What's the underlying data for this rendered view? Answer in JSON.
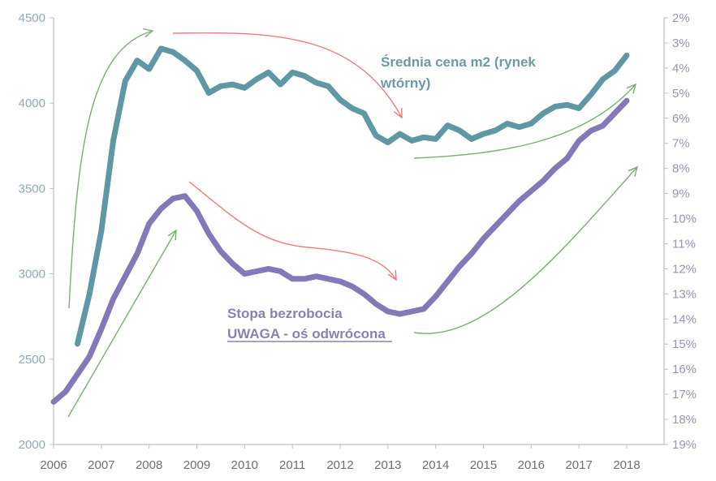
{
  "chart_data": {
    "type": "line",
    "title": "",
    "xlabel": "",
    "ylabel_left": "",
    "ylabel_right": "",
    "x_ticks": [
      "2006",
      "2007",
      "2008",
      "2009",
      "2010",
      "2011",
      "2012",
      "2013",
      "2014",
      "2015",
      "2016",
      "2017",
      "2018"
    ],
    "xlim": [
      2006,
      2018.8
    ],
    "y_left": {
      "ticks": [
        "2000",
        "2500",
        "3000",
        "3500",
        "4000",
        "4500"
      ],
      "ylim": [
        2000,
        4500
      ]
    },
    "y_right": {
      "ticks": [
        "2%",
        "3%",
        "4%",
        "5%",
        "6%",
        "7%",
        "8%",
        "9%",
        "10%",
        "11%",
        "12%",
        "13%",
        "14%",
        "15%",
        "16%",
        "17%",
        "18%",
        "19%"
      ],
      "ylim": [
        2,
        19
      ],
      "inverted": true
    },
    "grid": false,
    "series": [
      {
        "name": "Średnia cena m2 (rynek wtórny)",
        "axis": "left",
        "color": "#5f97a5",
        "x": [
          2006.5,
          2006.75,
          2007.0,
          2007.25,
          2007.5,
          2007.75,
          2008.0,
          2008.25,
          2008.5,
          2008.75,
          2009.0,
          2009.25,
          2009.5,
          2009.75,
          2010.0,
          2010.25,
          2010.5,
          2010.75,
          2011.0,
          2011.25,
          2011.5,
          2011.75,
          2012.0,
          2012.25,
          2012.5,
          2012.75,
          2013.0,
          2013.25,
          2013.5,
          2013.75,
          2014.0,
          2014.25,
          2014.5,
          2014.75,
          2015.0,
          2015.25,
          2015.5,
          2015.75,
          2016.0,
          2016.25,
          2016.5,
          2016.75,
          2017.0,
          2017.25,
          2017.5,
          2017.75,
          2018.0
        ],
        "values": [
          2590,
          2880,
          3250,
          3780,
          4130,
          4250,
          4200,
          4320,
          4300,
          4250,
          4190,
          4060,
          4100,
          4110,
          4090,
          4140,
          4180,
          4110,
          4180,
          4160,
          4120,
          4100,
          4020,
          3970,
          3940,
          3810,
          3770,
          3820,
          3780,
          3800,
          3790,
          3870,
          3840,
          3790,
          3820,
          3840,
          3880,
          3860,
          3880,
          3940,
          3980,
          3990,
          3970,
          4050,
          4140,
          4190,
          4280
        ]
      },
      {
        "name": "Stopa bezrobocia",
        "axis": "right",
        "color": "#8578b8",
        "x": [
          2006.0,
          2006.25,
          2006.5,
          2006.75,
          2007.0,
          2007.25,
          2007.5,
          2007.75,
          2008.0,
          2008.25,
          2008.5,
          2008.75,
          2009.0,
          2009.25,
          2009.5,
          2009.75,
          2010.0,
          2010.25,
          2010.5,
          2010.75,
          2011.0,
          2011.25,
          2011.5,
          2011.75,
          2012.0,
          2012.25,
          2012.5,
          2012.75,
          2013.0,
          2013.25,
          2013.5,
          2013.75,
          2014.0,
          2014.25,
          2014.5,
          2014.75,
          2015.0,
          2015.25,
          2015.5,
          2015.75,
          2016.0,
          2016.25,
          2016.5,
          2016.75,
          2017.0,
          2017.25,
          2017.5,
          2017.75,
          2018.0
        ],
        "values": [
          17.3,
          16.9,
          16.2,
          15.5,
          14.4,
          13.2,
          12.3,
          11.4,
          10.2,
          9.6,
          9.2,
          9.1,
          9.7,
          10.6,
          11.3,
          11.8,
          12.2,
          12.1,
          12.0,
          12.1,
          12.4,
          12.4,
          12.3,
          12.4,
          12.5,
          12.7,
          13.0,
          13.4,
          13.7,
          13.8,
          13.7,
          13.6,
          13.1,
          12.5,
          11.9,
          11.4,
          10.8,
          10.3,
          9.8,
          9.3,
          8.9,
          8.5,
          8.0,
          7.6,
          6.9,
          6.5,
          6.3,
          5.8,
          5.3
        ]
      }
    ],
    "annotations": [
      {
        "text": "Średnia cena m2 (rynek",
        "series": "price"
      },
      {
        "text": "wtórny)",
        "series": "price"
      },
      {
        "text": "Stopa bezrobocia",
        "series": "unemployment"
      },
      {
        "text": "UWAGA - oś odwrócona",
        "series": "unemployment",
        "underline": true
      }
    ],
    "trend_arrows": [
      {
        "name": "price-rise-2006-2008",
        "color": "#7aae72",
        "direction": "up"
      },
      {
        "name": "price-fall-2008-2013",
        "color": "#ee7a78",
        "direction": "down"
      },
      {
        "name": "price-rise-2013-2018",
        "color": "#7aae72",
        "direction": "up"
      },
      {
        "name": "unemp-improve-2006-2008",
        "color": "#7aae72",
        "direction": "up"
      },
      {
        "name": "unemp-worsen-2008-2013",
        "color": "#ee7a78",
        "direction": "down"
      },
      {
        "name": "unemp-improve-2013-2018",
        "color": "#7aae72",
        "direction": "up"
      }
    ]
  },
  "colors": {
    "axis": "#bfbfbf",
    "left_tick_text": "#8fa9b3",
    "right_tick_text": "#9b93b5",
    "x_tick_text": "#6e6e6e",
    "green_arrow": "#7aae72",
    "red_arrow": "#ee7a78"
  }
}
